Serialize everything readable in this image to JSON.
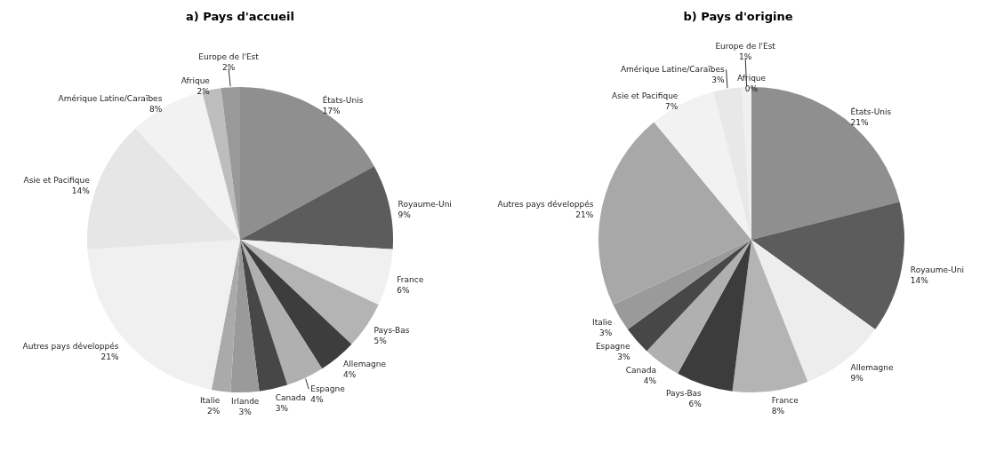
{
  "chart_data": [
    {
      "type": "pie",
      "title": "a) Pays d'accueil",
      "categories": [
        "États-Unis",
        "Royaume-Uni",
        "France",
        "Pays-Bas",
        "Allemagne",
        "Espagne",
        "Canada",
        "Irlande",
        "Italie",
        "Autres pays développés",
        "Asie et Pacifique",
        "Amérique Latine/Caraïbes",
        "Afrique",
        "Europe de l'Est"
      ],
      "values": [
        17,
        9,
        6,
        5,
        4,
        4,
        3,
        3,
        2,
        21,
        14,
        8,
        2,
        2
      ],
      "value_labels": [
        "17%",
        "9%",
        "6%",
        "5%",
        "4%",
        "4%",
        "3%",
        "3%",
        "2%",
        "21%",
        "14%",
        "8%",
        "2%",
        "2%"
      ],
      "colors": [
        "#8f8f8f",
        "#5c5c5c",
        "#f0f0f0",
        "#b4b4b4",
        "#3d3d3d",
        "#b0b0b0",
        "#474747",
        "#9a9a9a",
        "#aaaaaa",
        "#f0f0f0",
        "#e6e6e6",
        "#f2f2f2",
        "#bdbdbd",
        "#999999"
      ]
    },
    {
      "type": "pie",
      "title": "b) Pays d'origine",
      "categories": [
        "États-Unis",
        "Royaume-Uni",
        "Allemagne",
        "France",
        "Pays-Bas",
        "Canada",
        "Espagne",
        "Italie",
        "Autres pays développés",
        "Asie et Pacifique",
        "Amérique Latine/Caraïbes",
        "Europe de l'Est",
        "Afrique"
      ],
      "values": [
        21,
        14,
        9,
        8,
        6,
        4,
        3,
        3,
        21,
        7,
        3,
        1,
        0
      ],
      "value_labels": [
        "21%",
        "14%",
        "9%",
        "8%",
        "6%",
        "4%",
        "3%",
        "3%",
        "21%",
        "7%",
        "3%",
        "1%",
        "0%"
      ],
      "colors": [
        "#8f8f8f",
        "#5c5c5c",
        "#ededed",
        "#b4b4b4",
        "#3c3c3c",
        "#b0b0b0",
        "#474747",
        "#9a9a9a",
        "#a8a8a8",
        "#f2f2f2",
        "#e8e8e8",
        "#f0f0f0",
        "#a0a0a0"
      ]
    }
  ]
}
